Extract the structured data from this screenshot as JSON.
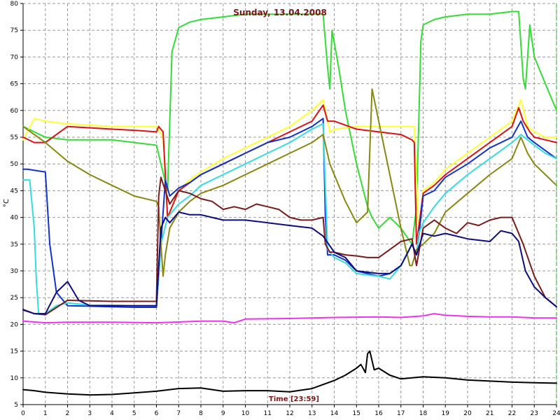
{
  "chart_data": {
    "type": "line",
    "title": "Sunday, 13.04.2008",
    "xlabel": "Time [23:59]",
    "ylabel": "°C",
    "xlim": [
      0,
      24
    ],
    "ylim": [
      5,
      80
    ],
    "xticks": [
      "0",
      "1",
      "2",
      "3",
      "4",
      "5",
      "6",
      "7",
      "8",
      "9",
      "10",
      "11",
      "12",
      "13",
      "14",
      "15",
      "16",
      "17",
      "18",
      "19",
      "20",
      "21",
      "22",
      "23",
      "24"
    ],
    "yticks": [
      "5",
      "10",
      "15",
      "20",
      "25",
      "30",
      "35",
      "40",
      "45",
      "50",
      "55",
      "60",
      "65",
      "70",
      "75",
      "80"
    ],
    "grid": true,
    "series": [
      {
        "color": "#33dd33",
        "x": [
          0,
          1,
          2,
          3,
          4,
          5,
          6,
          6.2,
          6.5,
          6.7,
          7,
          7.5,
          8,
          9,
          10,
          11,
          12,
          13,
          13.5,
          13.7,
          13.8,
          13.9,
          14.2,
          14.5,
          15,
          15.5,
          15.7,
          16,
          16.5,
          17,
          17.5,
          17.7,
          17.9,
          18,
          18.5,
          19,
          20,
          21,
          22,
          22.3,
          22.5,
          22.6,
          22.8,
          23,
          23.5,
          24
        ],
        "y": [
          57,
          55,
          54.5,
          54.5,
          54.5,
          54,
          53.5,
          50,
          45,
          71,
          75.5,
          76.5,
          77,
          77.5,
          78,
          78,
          78,
          78,
          78,
          68,
          64,
          75,
          68,
          60,
          50,
          42,
          40,
          38,
          40,
          38,
          35,
          42,
          73,
          76,
          77,
          77.5,
          78,
          78,
          78.5,
          78.5,
          66,
          64,
          76,
          70,
          65,
          60
        ]
      },
      {
        "color": "#ffff33",
        "x": [
          0,
          0.5,
          1,
          2,
          4,
          6,
          6.3,
          6.5,
          7,
          7.5,
          8,
          9,
          10,
          11,
          12,
          13,
          13.5,
          13.8,
          14,
          15,
          16,
          17,
          17.6,
          17.8,
          18,
          18.5,
          19,
          20,
          21,
          22,
          22.4,
          22.7,
          23,
          23.5,
          24
        ],
        "y": [
          54.5,
          58.5,
          58,
          57.5,
          57,
          57,
          55,
          40,
          45,
          47,
          48.5,
          51,
          53,
          55,
          57,
          60,
          62,
          56,
          56.5,
          57,
          57,
          57,
          57,
          37,
          45,
          46.5,
          49,
          52,
          55,
          58,
          62,
          57,
          56,
          55,
          55
        ]
      },
      {
        "color": "#dd1111",
        "x": [
          0,
          0.5,
          1,
          2,
          4,
          5,
          6,
          6.1,
          6.3,
          6.5,
          7,
          7.5,
          8,
          9,
          10,
          11,
          12,
          13,
          13.5,
          13.7,
          14,
          15,
          16,
          17,
          17.5,
          17.6,
          17.7,
          17.8,
          18,
          18.5,
          19,
          20,
          21,
          22,
          22.3,
          22.5,
          22.8,
          23,
          23.5,
          24
        ],
        "y": [
          55,
          54,
          54,
          57,
          56.5,
          56.3,
          56,
          57,
          56,
          40,
          45,
          46.5,
          48,
          50,
          52,
          54,
          56,
          58,
          61,
          58,
          58,
          56.5,
          56,
          55.5,
          54.5,
          54,
          35,
          38,
          44.5,
          46,
          48,
          51,
          54,
          57,
          60.5,
          58,
          56,
          55,
          54.5,
          54
        ]
      },
      {
        "color": "#1133cc",
        "x": [
          0,
          0.2,
          1,
          1.2,
          1.5,
          2,
          3,
          4,
          5,
          6,
          6.2,
          6.4,
          6.6,
          7,
          7.5,
          8,
          9,
          10,
          11,
          12,
          13,
          13.5,
          13.6,
          13.7,
          14,
          14.5,
          15,
          16,
          16.5,
          17,
          17.5,
          17.7,
          17.9,
          18,
          18.5,
          19,
          20,
          21,
          22,
          22.4,
          22.7,
          23,
          23.5,
          24
        ],
        "y": [
          49,
          49,
          48.5,
          35,
          26,
          23.5,
          23.4,
          23.3,
          23.2,
          23.2,
          35,
          47,
          44,
          45.5,
          46.5,
          48,
          50,
          52,
          54,
          55,
          57,
          58.5,
          40,
          33,
          33,
          32,
          30,
          29,
          29.5,
          31,
          35,
          33,
          40,
          44,
          45,
          47.5,
          50,
          53,
          55,
          58,
          55,
          54,
          52.5,
          51
        ]
      },
      {
        "color": "#33dddd",
        "x": [
          0,
          0.3,
          0.5,
          0.6,
          0.7,
          1,
          1.5,
          2,
          3,
          4,
          5,
          6,
          6.2,
          6.5,
          7,
          7.5,
          8,
          9,
          10,
          11,
          12,
          13,
          13.5,
          13.7,
          14,
          14.5,
          15,
          16,
          16.5,
          17,
          17.5,
          17.7,
          17.8,
          18,
          18.5,
          19,
          20,
          21,
          22,
          22.4,
          22.7,
          23,
          23.5,
          24
        ],
        "y": [
          47,
          47,
          38,
          28,
          22,
          22,
          23.5,
          24,
          23.6,
          23.6,
          23.5,
          23.5,
          35,
          40,
          42.5,
          44,
          46,
          48,
          50,
          52,
          54,
          56.5,
          57.5,
          34,
          32.5,
          31.5,
          29.5,
          29,
          28.5,
          31,
          35,
          33,
          37,
          39,
          42,
          44.5,
          48,
          51,
          54,
          55.5,
          54.5,
          53.5,
          52,
          51
        ]
      },
      {
        "color": "#888811",
        "x": [
          0,
          1,
          2,
          3,
          4,
          5,
          6,
          6.1,
          6.2,
          6.3,
          6.4,
          6.6,
          7,
          7.5,
          8,
          9,
          10,
          11,
          12,
          13,
          13.5,
          13.8,
          14,
          14.5,
          15,
          15.5,
          15.7,
          16,
          16.5,
          17,
          17.4,
          17.5,
          17.7,
          18,
          18.5,
          19,
          20,
          21,
          22,
          22.4,
          22.7,
          23,
          23.5,
          24
        ],
        "y": [
          57,
          54,
          50.5,
          48,
          46,
          44,
          43,
          42,
          35,
          29,
          33,
          38,
          41,
          43,
          44.5,
          46,
          48,
          50,
          52,
          54,
          55.5,
          50,
          48,
          43,
          39,
          41,
          64,
          58,
          48,
          38,
          31,
          31,
          34,
          35,
          37,
          41,
          44.5,
          48,
          51,
          55,
          52,
          50,
          48,
          46
        ]
      },
      {
        "color": "#7a1a1a",
        "x": [
          0,
          0.5,
          1,
          2,
          3,
          4,
          5,
          6,
          6.1,
          6.2,
          6.4,
          6.6,
          7,
          7.5,
          8,
          8.5,
          9,
          9.5,
          10,
          10.5,
          11,
          11.5,
          12,
          12.5,
          13,
          13.5,
          13.6,
          13.8,
          14,
          14.5,
          15,
          15.5,
          16,
          16.5,
          17,
          17.5,
          17.7,
          18,
          18.5,
          19,
          19.5,
          20,
          20.5,
          21,
          21.5,
          22,
          22.5,
          23,
          23.5,
          24
        ],
        "y": [
          22.8,
          22,
          21.8,
          24.5,
          24.4,
          24.3,
          24.3,
          24.3,
          44,
          47.5,
          45,
          42.5,
          45,
          44.5,
          43.5,
          43,
          41.5,
          42,
          41.5,
          42.5,
          42,
          41.5,
          40,
          39.5,
          39.5,
          40,
          35,
          33.5,
          33.5,
          33,
          32.8,
          32.5,
          32.5,
          34,
          35.5,
          36,
          31,
          38,
          39.5,
          38,
          37,
          39,
          38.5,
          39.5,
          40,
          40,
          35,
          29,
          25,
          23.3
        ]
      },
      {
        "color": "#0d0d80",
        "x": [
          0,
          0.5,
          1,
          1.5,
          2,
          2.5,
          3,
          4,
          5,
          6,
          6.2,
          6.4,
          6.6,
          7,
          7.5,
          8,
          8.5,
          9,
          10,
          11,
          12,
          13,
          13.5,
          14,
          14.5,
          15,
          16,
          16.5,
          17,
          17.5,
          17.7,
          18,
          18.5,
          19,
          20,
          21,
          21.5,
          22,
          22.3,
          22.6,
          23,
          23.5,
          24
        ],
        "y": [
          22.7,
          22,
          22,
          26,
          28,
          24.5,
          23.5,
          23.5,
          23.5,
          23.5,
          38,
          40,
          39,
          41,
          40.5,
          40.5,
          40,
          39.5,
          39.5,
          39,
          38.5,
          38,
          36.5,
          33.5,
          32.5,
          30,
          29.5,
          29.5,
          31,
          35,
          33,
          37,
          36.5,
          37,
          36,
          35.5,
          37.5,
          37,
          35.5,
          30,
          27,
          25,
          23.3
        ]
      },
      {
        "color": "#ee33ee",
        "x": [
          0,
          1,
          2,
          4,
          6,
          8,
          9,
          9.5,
          10,
          12,
          14,
          16,
          17,
          18,
          18.5,
          19,
          20,
          21,
          22,
          23,
          24
        ],
        "y": [
          20.6,
          20.3,
          20.4,
          20.4,
          20.3,
          20.6,
          20.6,
          20.3,
          21,
          21.1,
          21.3,
          21.4,
          21.3,
          21.6,
          22,
          21.7,
          21.5,
          21.4,
          21.4,
          21.2,
          21.2
        ]
      },
      {
        "color": "#000000",
        "x": [
          0,
          0.5,
          1,
          2,
          3,
          4,
          5,
          6,
          7,
          8,
          9,
          10,
          11,
          12,
          13,
          14,
          14.5,
          15,
          15.2,
          15.4,
          15.5,
          15.6,
          15.8,
          16,
          16.5,
          17,
          18,
          19,
          20,
          21,
          22,
          23,
          24
        ],
        "y": [
          7.8,
          7.6,
          7.3,
          7,
          6.8,
          6.9,
          7.2,
          7.5,
          8,
          8.1,
          7.5,
          7.6,
          7.6,
          7.4,
          8,
          9.5,
          10.5,
          11.8,
          12.5,
          11,
          14.5,
          15,
          11.5,
          11.8,
          10.5,
          9.8,
          10.2,
          10,
          9.6,
          9.4,
          9.2,
          9.1,
          9
        ]
      }
    ]
  }
}
